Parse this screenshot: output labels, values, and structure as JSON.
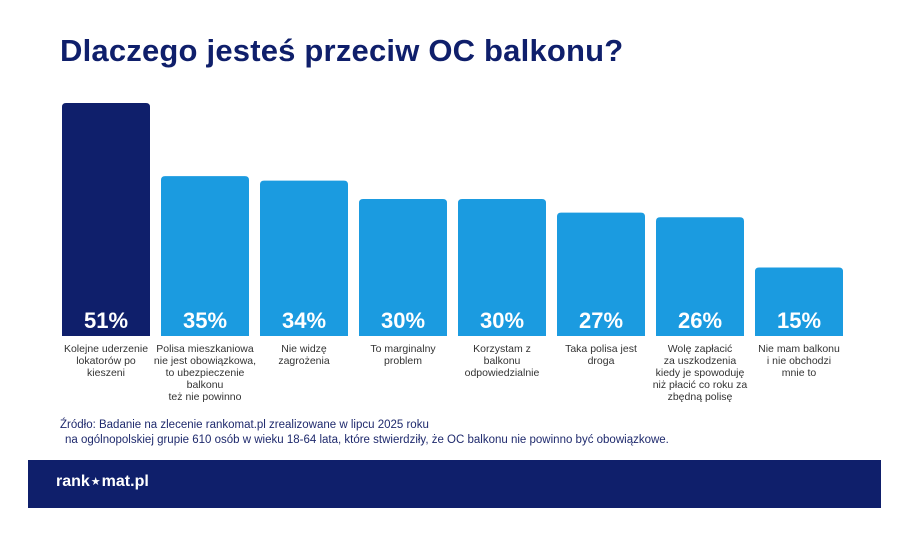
{
  "title": "Dlaczego jesteś przeciw OC balkonu?",
  "chart_data": {
    "type": "bar",
    "title": "Dlaczego jesteś przeciw OC balkonu?",
    "categories": [
      "Kolejne uderzenie lokatorów po kieszeni",
      "Polisa mieszkaniowa nie jest obowiązkowa, to ubezpieczenie balkonu też nie powinno",
      "Nie widzę zagrożenia",
      "To marginalny problem",
      "Korzystam z balkonu odpowiedzialnie",
      "Taka polisa jest droga",
      "Wolę zapłacić za uszkodzenia kiedy je spowoduję niż płacić co roku za zbędną polisę",
      "Nie mam balkonu i nie obchodzi mnie to"
    ],
    "category_lines": [
      "Kolejne uderzenie\nlokatorów po\nkieszeni",
      "Polisa mieszkaniowa\nnie jest obowiązkowa,\nto ubezpieczenie\nbalkonu\nteż nie powinno",
      "Nie widzę\nzagrożenia",
      "To marginalny\nproblem",
      "Korzystam z\nbalkonu\nodpowiedzialnie",
      "Taka polisa jest\ndroga",
      "Wolę zapłacić\nza uszkodzenia\nkiedy je spowoduję\nniż płacić co roku za\nzbędną polisę",
      "Nie mam balkonu\ni nie obchodzi\nmnie to"
    ],
    "values": [
      51,
      35,
      34,
      30,
      30,
      27,
      26,
      15
    ],
    "value_labels": [
      "51%",
      "35%",
      "34%",
      "30%",
      "30%",
      "27%",
      "26%",
      "15%"
    ],
    "ylim": [
      0,
      51
    ],
    "grid": false,
    "colors": {
      "highlight": "#0f1f6b",
      "bar": "#1b9be0",
      "label": "#ffffff"
    }
  },
  "source": {
    "line1": "Źródło: Badanie na zlecenie rankomat.pl zrealizowane w lipcu 2025 roku",
    "line2": "na ogólnopolskiej grupie 610 osób w wieku 18-64 lata, które stwierdziły, że OC balkonu nie powinno być obowiązkowe."
  },
  "footer": {
    "brand_left": "rank",
    "brand_star": "★",
    "brand_right": "mat.pl",
    "background": "#0f1f6b"
  }
}
